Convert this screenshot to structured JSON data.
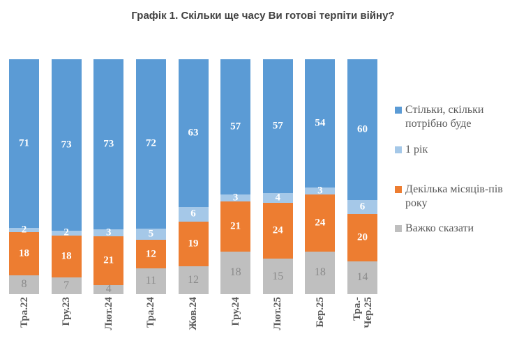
{
  "chart_data": {
    "type": "bar",
    "variant": "stacked-100-percent",
    "title": "Графік 1. Скільки ще часу Ви готові терпіти війну?",
    "categories": [
      "Тра.22",
      "Гру.23",
      "Лют.24",
      "Тра.24",
      "Жов.24",
      "Гру.24",
      "Лют.25",
      "Бер.25",
      "Тра.-\nЧер.25"
    ],
    "series": [
      {
        "name": "Стільки, скільки потрібно буде",
        "color": "#5B9BD5",
        "label_color": "#FFFFFF",
        "values": [
          71,
          73,
          73,
          72,
          63,
          57,
          57,
          54,
          60
        ]
      },
      {
        "name": "1 рік",
        "color": "#A5C8E8",
        "label_color": "#FFFFFF",
        "values": [
          2,
          2,
          3,
          5,
          6,
          3,
          4,
          3,
          6
        ]
      },
      {
        "name": "Декілька місяців-пів року",
        "color": "#ED7D31",
        "label_color": "#FFFFFF",
        "values": [
          18,
          18,
          21,
          12,
          19,
          21,
          24,
          24,
          20
        ]
      },
      {
        "name": "Важко сказати",
        "color": "#BFBFBF",
        "label_color": "#8A8A8A",
        "values": [
          8,
          7,
          4,
          11,
          12,
          18,
          15,
          18,
          14
        ]
      }
    ],
    "legend_position": "right",
    "grid": false,
    "axis_lines": false,
    "x_tick_rotation": -90,
    "ylim": [
      0,
      100
    ],
    "title_color": "#404040",
    "tick_label_color": "#595959",
    "legend_text_color": "#595959",
    "background_color": "#FFFFFF"
  }
}
